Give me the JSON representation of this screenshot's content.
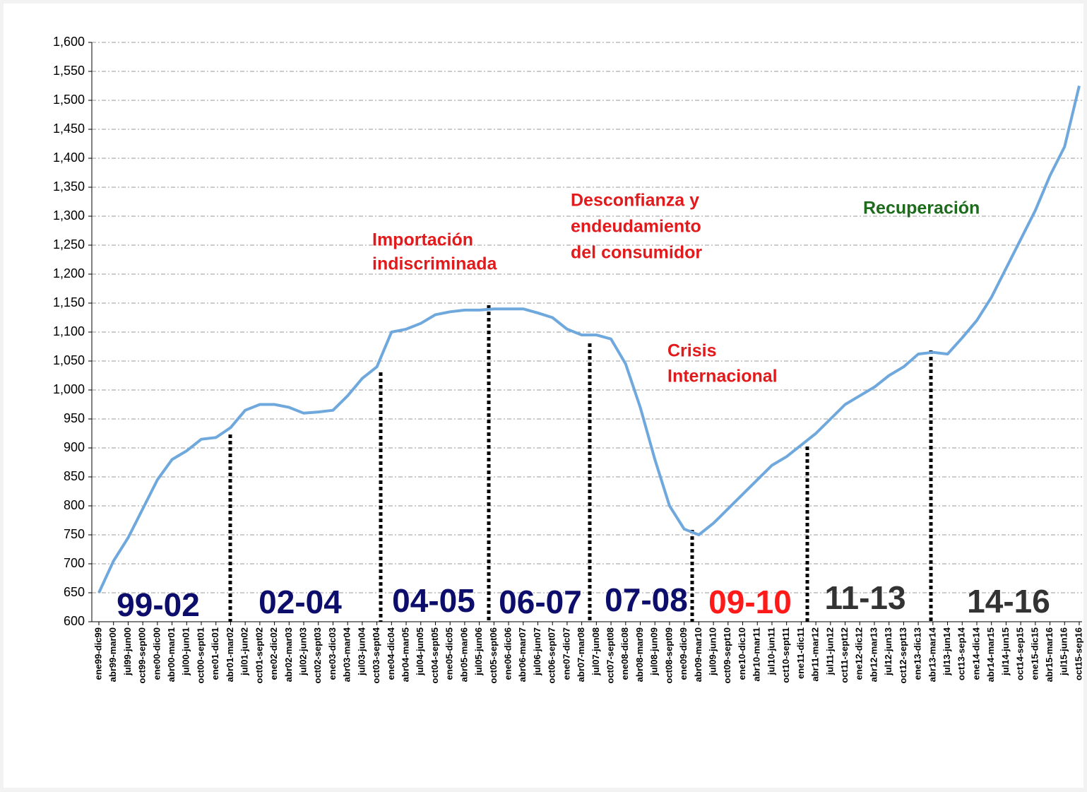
{
  "chart_data": {
    "type": "line",
    "categories": [
      "ene99-dic99",
      "abr99-mar00",
      "jul99-jun00",
      "oct99-sept00",
      "ene00-dic00",
      "abr00-mar01",
      "jul00-jun01",
      "oct00-sept01",
      "ene01-dic01",
      "abr01-mar02",
      "jul01-jun02",
      "oct01-sept02",
      "ene02-dic02",
      "abr02-mar03",
      "jul02-jun03",
      "oct02-sept03",
      "ene03-dic03",
      "abr03-mar04",
      "jul03-jun04",
      "oct03-sept04",
      "ene04-dic04",
      "abr04-mar05",
      "jul04-jun05",
      "oct04-sept05",
      "ene05-dic05",
      "abr05-mar06",
      "jul05-jun06",
      "oct05-sept06",
      "ene06-dic06",
      "abr06-mar07",
      "jul06-jun07",
      "oct06-sept07",
      "ene07-dic07",
      "abr07-mar08",
      "jul07-jun08",
      "oct07-sept08",
      "ene08-dic08",
      "abr08-mar09",
      "jul08-jun09",
      "oct08-sept09",
      "ene09-dic09",
      "abr09-mar10",
      "jul09-jun10",
      "oct09-sept10",
      "ene10-dic10",
      "abr10-mar11",
      "jul10-jun11",
      "oct10-sept11",
      "ene11-dic11",
      "abr11-mar12",
      "jul11-jun12",
      "oct11-sept12",
      "ene12-dic12",
      "abr12-mar13",
      "jul12-jun13",
      "oct12-sept13",
      "ene13-dic13",
      "abr13-mar14",
      "jul13-jun14",
      "oct13-sep14",
      "ene14-dic14",
      "abr14-mar15",
      "jul14-jun15",
      "oct14-sep15",
      "ene15-dic15",
      "abr15-mar16",
      "jul15-jun16",
      "oct15-sep16"
    ],
    "series": [
      {
        "color": "#6fa8dc",
        "values": [
          650,
          705,
          745,
          795,
          845,
          880,
          895,
          915,
          918,
          935,
          965,
          975,
          975,
          970,
          960,
          962,
          965,
          990,
          1020,
          1040,
          1100,
          1105,
          1115,
          1130,
          1135,
          1138,
          1138,
          1140,
          1140,
          1140,
          1133,
          1125,
          1105,
          1095,
          1095,
          1088,
          1045,
          970,
          880,
          800,
          760,
          750,
          770,
          795,
          820,
          845,
          870,
          885,
          905,
          925,
          950,
          975,
          990,
          1005,
          1025,
          1040,
          1062,
          1065,
          1062,
          1090,
          1120,
          1160,
          1210,
          1260,
          1310,
          1370,
          1420,
          1525
        ]
      }
    ],
    "ylim": [
      600,
      1600
    ],
    "yticks": [
      600,
      650,
      700,
      750,
      800,
      850,
      900,
      950,
      {
        "value": 1000,
        "label": "1,000"
      },
      {
        "value": 1050,
        "label": "1,050"
      },
      {
        "value": 1100,
        "label": "1,100"
      },
      {
        "value": 1150,
        "label": "1,150"
      },
      {
        "value": 1200,
        "label": "1,200"
      },
      {
        "value": 1250,
        "label": "1,250"
      },
      {
        "value": 1300,
        "label": "1,300"
      },
      {
        "value": 1350,
        "label": "1,350"
      },
      {
        "value": 1400,
        "label": "1,400"
      },
      {
        "value": 1450,
        "label": "1,450"
      },
      {
        "value": 1500,
        "label": "1,500"
      },
      {
        "value": 1550,
        "label": "1,550"
      },
      {
        "value": 1600,
        "label": "1,600"
      }
    ],
    "grid": true,
    "annotations": [
      {
        "text": "Importación",
        "color": "#e31a1c"
      },
      {
        "text": "indiscriminada",
        "color": "#e31a1c"
      },
      {
        "text": "Desconfianza y",
        "color": "#e31a1c"
      },
      {
        "text": "endeudamiento",
        "color": "#e31a1c"
      },
      {
        "text": "del consumidor",
        "color": "#e31a1c"
      },
      {
        "text": "Crisis",
        "color": "#e31a1c"
      },
      {
        "text": "Internacional",
        "color": "#e31a1c"
      },
      {
        "text": "Recuperación",
        "color": "#1e6b1e"
      }
    ],
    "periods": [
      {
        "text": "99-02",
        "color": "#0d0d6b"
      },
      {
        "text": "02-04",
        "color": "#0d0d6b"
      },
      {
        "text": "04-05",
        "color": "#0d0d6b"
      },
      {
        "text": "06-07",
        "color": "#0d0d6b"
      },
      {
        "text": "07-08",
        "color": "#0d0d6b"
      },
      {
        "text": "09-10",
        "color": "#ff1a1a"
      },
      {
        "text": "11-13",
        "color": "#333333"
      },
      {
        "text": "14-16",
        "color": "#333333"
      }
    ]
  }
}
